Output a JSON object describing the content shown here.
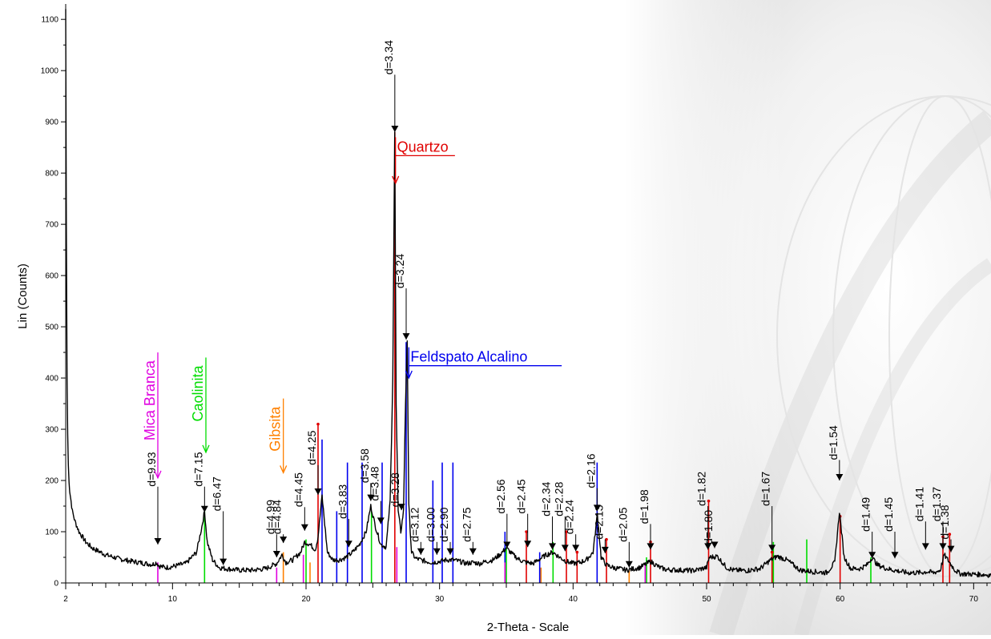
{
  "chart_data": {
    "type": "line",
    "title": "",
    "xlabel": "2-Theta - Scale",
    "ylabel": "Lin (Counts)",
    "xlim": [
      2,
      71.3
    ],
    "ylim": [
      0,
      1130
    ],
    "x_ticks": [
      2,
      10,
      20,
      30,
      40,
      50,
      60,
      70
    ],
    "x_tick_labels": [
      "2",
      "10",
      "20",
      "30",
      "40",
      "50",
      "60",
      "70"
    ],
    "y_ticks": [
      0,
      100,
      200,
      300,
      400,
      500,
      600,
      700,
      800,
      900,
      1000,
      1100
    ],
    "y_tick_labels": [
      "0",
      "100",
      "200",
      "300",
      "400",
      "500",
      "600",
      "700",
      "800",
      "900",
      "1000",
      "1100"
    ],
    "grid": false,
    "colors": {
      "pattern": "#000000",
      "quartzo": "#e00000",
      "feldspato": "#0000ee",
      "caolinita": "#00dd00",
      "mica": "#e000e0",
      "gibsita": "#ff8000"
    },
    "series": [
      {
        "color": "#000000",
        "x": [
          2.0,
          2.05,
          2.1,
          2.15,
          2.2,
          2.25,
          2.3,
          2.4,
          2.5,
          2.7,
          3.0,
          3.5,
          4.0,
          5.0,
          6.0,
          7.0,
          8.0,
          8.5,
          8.8,
          9.0,
          9.5,
          10.0,
          11.0,
          11.8,
          12.2,
          12.4,
          12.6,
          13.0,
          13.5,
          14.0,
          15.0,
          16.0,
          17.0,
          17.8,
          18.2,
          18.5,
          19.0,
          19.6,
          19.9,
          20.3,
          20.7,
          20.9,
          21.2,
          21.6,
          22.0,
          22.5,
          23.0,
          23.5,
          24.0,
          24.5,
          24.85,
          25.2,
          25.6,
          26.0,
          26.3,
          26.5,
          26.64,
          26.75,
          26.9,
          27.1,
          27.3,
          27.45,
          27.58,
          27.7,
          27.9,
          28.2,
          28.6,
          29.0,
          29.5,
          30.0,
          30.5,
          31.0,
          31.5,
          32.0,
          32.5,
          33.0,
          33.5,
          34.0,
          34.5,
          35.0,
          35.5,
          36.0,
          36.5,
          37.0,
          38.0,
          38.5,
          39.0,
          39.5,
          40.0,
          40.5,
          41.0,
          41.5,
          41.82,
          42.1,
          42.5,
          43.0,
          44.0,
          45.0,
          45.8,
          46.5,
          47.0,
          48.0,
          49.0,
          50.0,
          50.2,
          50.8,
          51.5,
          52.0,
          53.0,
          54.0,
          54.8,
          55.3,
          56.0,
          57.0,
          58.0,
          59.0,
          59.6,
          59.95,
          60.3,
          60.8,
          61.5,
          62.0,
          62.4,
          62.8,
          63.5,
          64.0,
          65.0,
          66.0,
          66.5,
          67.0,
          67.5,
          67.8,
          68.2,
          68.6,
          69.0,
          70.0,
          71.0,
          71.3
        ],
        "y": [
          1120,
          700,
          400,
          290,
          230,
          200,
          180,
          160,
          140,
          120,
          100,
          80,
          68,
          55,
          47,
          42,
          38,
          36,
          40,
          33,
          30,
          32,
          38,
          60,
          110,
          140,
          80,
          45,
          30,
          28,
          25,
          25,
          28,
          38,
          55,
          40,
          45,
          60,
          80,
          75,
          65,
          90,
          170,
          60,
          45,
          45,
          50,
          60,
          75,
          100,
          150,
          110,
          75,
          70,
          160,
          400,
          880,
          350,
          140,
          100,
          140,
          350,
          475,
          150,
          60,
          48,
          45,
          42,
          40,
          42,
          45,
          45,
          42,
          38,
          40,
          38,
          42,
          45,
          55,
          68,
          55,
          45,
          40,
          38,
          55,
          60,
          50,
          42,
          38,
          40,
          45,
          60,
          135,
          50,
          35,
          30,
          25,
          30,
          42,
          30,
          26,
          25,
          24,
          30,
          50,
          52,
          30,
          25,
          24,
          28,
          45,
          52,
          45,
          25,
          22,
          20,
          40,
          140,
          50,
          28,
          28,
          35,
          50,
          35,
          28,
          25,
          20,
          20,
          22,
          20,
          25,
          55,
          40,
          25,
          18,
          17,
          16,
          15
        ]
      }
    ],
    "ref_lines": [
      {
        "phase": "Quartzo",
        "color": "#e00000",
        "peaks": [
          [
            20.9,
            310
          ],
          [
            26.65,
            880
          ],
          [
            36.5,
            100
          ],
          [
            39.5,
            100
          ],
          [
            40.3,
            60
          ],
          [
            42.5,
            85
          ],
          [
            45.8,
            80
          ],
          [
            50.15,
            160
          ],
          [
            54.9,
            60
          ],
          [
            60.0,
            130
          ],
          [
            67.7,
            90
          ],
          [
            68.2,
            95
          ]
        ]
      },
      {
        "phase": "Feldspato Alcalino",
        "color": "#0000ee",
        "peaks": [
          [
            21.2,
            280
          ],
          [
            22.3,
            140
          ],
          [
            23.1,
            235
          ],
          [
            24.2,
            235
          ],
          [
            25.7,
            235
          ],
          [
            27.5,
            470
          ],
          [
            29.5,
            200
          ],
          [
            30.2,
            235
          ],
          [
            31.0,
            235
          ],
          [
            34.9,
            100
          ],
          [
            41.8,
            235
          ],
          [
            37.5,
            60
          ]
        ]
      },
      {
        "phase": "Caolinita",
        "color": "#00dd00",
        "peaks": [
          [
            12.4,
            140
          ],
          [
            20.0,
            85
          ],
          [
            24.9,
            140
          ],
          [
            35.0,
            70
          ],
          [
            38.5,
            80
          ],
          [
            45.5,
            50
          ],
          [
            55.0,
            80
          ],
          [
            57.5,
            85
          ],
          [
            62.3,
            50
          ]
        ]
      },
      {
        "phase": "Mica Branca",
        "color": "#e000e0",
        "peaks": [
          [
            8.9,
            40
          ],
          [
            17.8,
            30
          ],
          [
            19.8,
            55
          ],
          [
            26.8,
            70
          ],
          [
            34.9,
            40
          ],
          [
            45.4,
            35
          ]
        ]
      },
      {
        "phase": "Gibsita",
        "color": "#ff8000",
        "peaks": [
          [
            18.3,
            60
          ],
          [
            20.3,
            40
          ],
          [
            37.6,
            30
          ],
          [
            44.2,
            25
          ]
        ]
      }
    ],
    "d_labels": [
      {
        "text": "d=9.93",
        "x": 8.9,
        "y": 188,
        "y_mark": 75
      },
      {
        "text": "d=7.15",
        "x": 12.4,
        "y": 188,
        "y_mark": 138
      },
      {
        "text": "d=6.47",
        "x": 13.8,
        "y": 140,
        "y_mark": 35
      },
      {
        "text": "d=4.99",
        "x": 17.8,
        "y": 95,
        "y_mark": 50
      },
      {
        "text": "d=4.84",
        "x": 18.3,
        "y": 95,
        "y_mark": 78
      },
      {
        "text": "d=4.45",
        "x": 19.9,
        "y": 148,
        "y_mark": 102
      },
      {
        "text": "d=4.25",
        "x": 20.9,
        "y": 230,
        "y_mark": 172
      },
      {
        "text": "d=3.83",
        "x": 23.2,
        "y": 125,
        "y_mark": 70
      },
      {
        "text": "d=3.58",
        "x": 24.85,
        "y": 195,
        "y_mark": 160
      },
      {
        "text": "d=3.48",
        "x": 25.6,
        "y": 160,
        "y_mark": 115
      },
      {
        "text": "d=3.34",
        "x": 26.65,
        "y": 992,
        "y_mark": 880
      },
      {
        "text": "d=3.28",
        "x": 27.15,
        "y": 148,
        "y_mark": 142
      },
      {
        "text": "d=3.24",
        "x": 27.5,
        "y": 575,
        "y_mark": 475
      },
      {
        "text": "d=3.12",
        "x": 28.6,
        "y": 80,
        "y_mark": 55
      },
      {
        "text": "d=3.00",
        "x": 29.8,
        "y": 80,
        "y_mark": 55
      },
      {
        "text": "d=2.90",
        "x": 30.8,
        "y": 80,
        "y_mark": 55
      },
      {
        "text": "d=2.75",
        "x": 32.5,
        "y": 80,
        "y_mark": 55
      },
      {
        "text": "d=2.56",
        "x": 35.05,
        "y": 135,
        "y_mark": 68
      },
      {
        "text": "d=2.45",
        "x": 36.6,
        "y": 135,
        "y_mark": 70
      },
      {
        "text": "d=2.34",
        "x": 38.45,
        "y": 130,
        "y_mark": 65
      },
      {
        "text": "d=2.28",
        "x": 39.4,
        "y": 130,
        "y_mark": 62
      },
      {
        "text": "d=2.24",
        "x": 40.2,
        "y": 95,
        "y_mark": 62
      },
      {
        "text": "d=2.16",
        "x": 41.8,
        "y": 185,
        "y_mark": 140
      },
      {
        "text": "d=2.13",
        "x": 42.4,
        "y": 85,
        "y_mark": 58
      },
      {
        "text": "d=2.05",
        "x": 44.2,
        "y": 80,
        "y_mark": 30
      },
      {
        "text": "d=1.98",
        "x": 45.8,
        "y": 115,
        "y_mark": 65
      },
      {
        "text": "d=1.82",
        "x": 50.1,
        "y": 150,
        "y_mark": 65
      },
      {
        "text": "d=1.80",
        "x": 50.6,
        "y": 75,
        "y_mark": 68
      },
      {
        "text": "d=1.67",
        "x": 54.9,
        "y": 150,
        "y_mark": 62
      },
      {
        "text": "d=1.54",
        "x": 59.95,
        "y": 240,
        "y_mark": 200
      },
      {
        "text": "d=1.49",
        "x": 62.4,
        "y": 100,
        "y_mark": 48
      },
      {
        "text": "d=1.45",
        "x": 64.1,
        "y": 100,
        "y_mark": 48
      },
      {
        "text": "d=1.41",
        "x": 66.4,
        "y": 120,
        "y_mark": 65
      },
      {
        "text": "d=1.37",
        "x": 67.7,
        "y": 120,
        "y_mark": 65
      },
      {
        "text": "d=1.38",
        "x": 68.3,
        "y": 85,
        "y_mark": 60
      }
    ],
    "phase_labels": [
      {
        "text": "Mica Branca",
        "color": "#e000e0",
        "x": 8.9,
        "y_top": 450,
        "y_tip": 205
      },
      {
        "text": "Caolinita",
        "color": "#00dd00",
        "x": 12.5,
        "y_top": 440,
        "y_tip": 255
      },
      {
        "text": "Gibsita",
        "color": "#ff8000",
        "x": 18.3,
        "y_top": 360,
        "y_tip": 215
      },
      {
        "text": "Quartzo",
        "color": "#e00000",
        "x": 26.7,
        "y_top": 870,
        "y_tip": 780
      },
      {
        "text": "Feldspato Alcalino",
        "color": "#0000ee",
        "x": 27.7,
        "y_top": 460,
        "y_tip": 400
      }
    ]
  }
}
